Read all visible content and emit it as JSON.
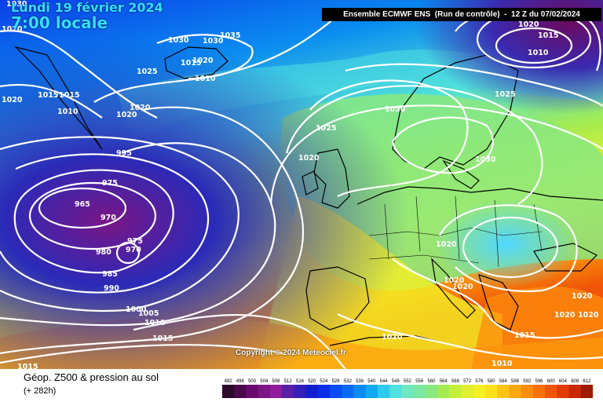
{
  "header": {
    "date_line": "Lundi 19 février 2024",
    "time_line": "7:00 locale",
    "model_info": "Ensemble ECMWF ENS  (Run de contrôle)  -  12 Z du 07/02/2024"
  },
  "map": {
    "copyright": "Copyright © 2024 Meteociel.fr",
    "pressure_labels": [
      {
        "text": "1030"
      },
      {
        "text": "1020"
      },
      {
        "text": "1030"
      },
      {
        "text": "1035"
      },
      {
        "text": "1020"
      },
      {
        "text": "1015"
      },
      {
        "text": "1010"
      },
      {
        "text": "1030"
      },
      {
        "text": "1025"
      },
      {
        "text": "1020"
      },
      {
        "text": "1015"
      },
      {
        "text": "1015"
      },
      {
        "text": "1010"
      },
      {
        "text": "1020"
      },
      {
        "text": "1020"
      },
      {
        "text": "995"
      },
      {
        "text": "975"
      },
      {
        "text": "965"
      },
      {
        "text": "970"
      },
      {
        "text": "975"
      },
      {
        "text": "970"
      },
      {
        "text": "980"
      },
      {
        "text": "985"
      },
      {
        "text": "990"
      },
      {
        "text": "1000"
      },
      {
        "text": "1005"
      },
      {
        "text": "1010"
      },
      {
        "text": "1015"
      },
      {
        "text": "1015"
      },
      {
        "text": "1030"
      },
      {
        "text": "1025"
      },
      {
        "text": "1020"
      },
      {
        "text": "1025"
      },
      {
        "text": "1030"
      },
      {
        "text": "1020"
      },
      {
        "text": "1020"
      },
      {
        "text": "1020"
      },
      {
        "text": "1020"
      },
      {
        "text": "1015"
      },
      {
        "text": "1010"
      },
      {
        "text": "1020"
      },
      {
        "text": "1020"
      },
      {
        "text": "1020"
      },
      {
        "text": "1020"
      },
      {
        "text": "1015"
      },
      {
        "text": "1010"
      }
    ]
  },
  "footer": {
    "title": "Géop. Z500 & pression au sol",
    "subtitle": "(+ 282h)"
  },
  "legend": {
    "values": [
      "492",
      "496",
      "500",
      "504",
      "508",
      "512",
      "516",
      "520",
      "524",
      "528",
      "532",
      "536",
      "540",
      "544",
      "548",
      "552",
      "556",
      "560",
      "564",
      "568",
      "572",
      "576",
      "580",
      "584",
      "588",
      "592",
      "596",
      "600",
      "604",
      "608",
      "612"
    ],
    "colors": [
      "#2b0a2b",
      "#4a0a4a",
      "#6a0a6e",
      "#7d1585",
      "#8f1c9c",
      "#5a1ea8",
      "#3420b8",
      "#1020d0",
      "#0a2ee8",
      "#0a4cf5",
      "#0a6cf5",
      "#0a8cf0",
      "#12aaf0",
      "#2ecaf0",
      "#50e0e0",
      "#6ee8c0",
      "#7ae8a0",
      "#8ae880",
      "#a4ec50",
      "#c4f03a",
      "#e0f030",
      "#f4f026",
      "#fce01c",
      "#fcc414",
      "#fca810",
      "#fc8c0c",
      "#f87008",
      "#f05406",
      "#e03c04",
      "#c82804",
      "#a01a04",
      "#781004"
    ]
  }
}
